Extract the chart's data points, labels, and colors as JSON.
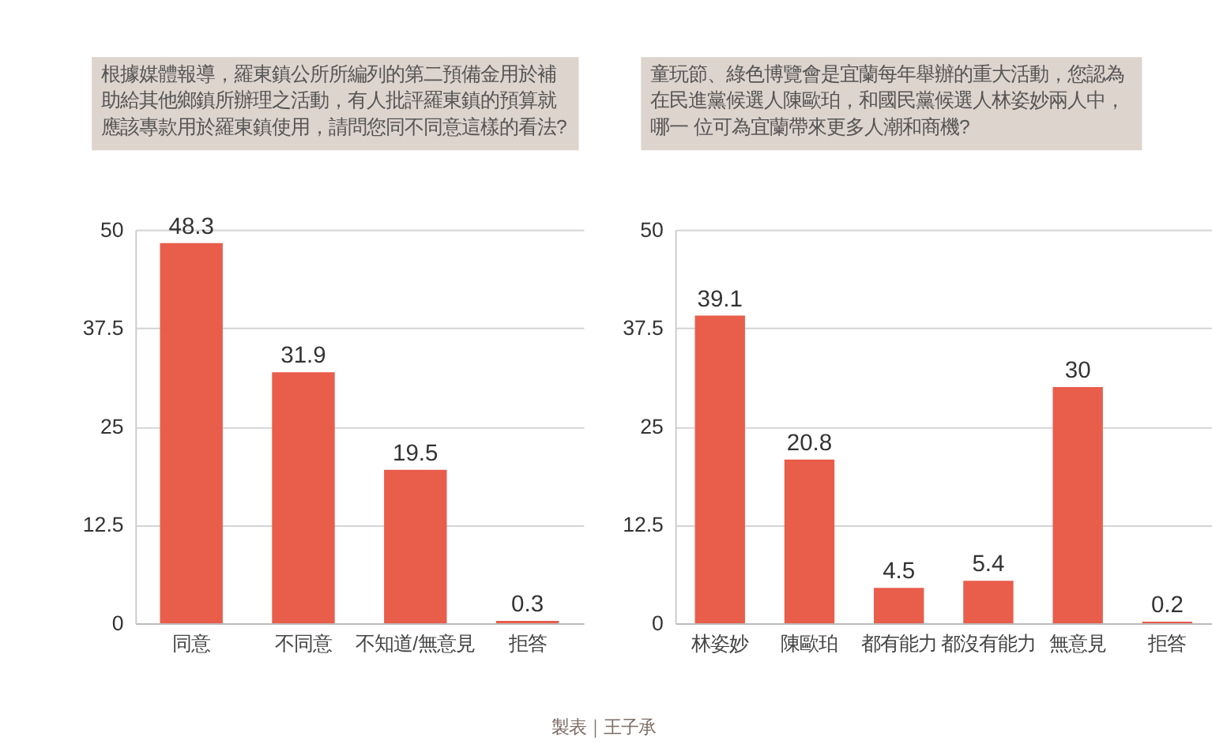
{
  "chart_data": [
    {
      "type": "bar",
      "title": "根據媒體報導，羅東鎮公所所編列的第二預備金用於補助給其他鄉鎮所辦理之活動，有人批評羅東鎮的預算就應該專款用於羅東鎮使用，請問您同不同意這樣的看法?",
      "categories": [
        "同意",
        "不同意",
        "不知道/無意見",
        "拒答"
      ],
      "values": [
        48.3,
        31.9,
        19.5,
        0.3
      ],
      "color": "#e95d4b",
      "ylim": [
        0,
        50
      ],
      "yticks": [
        0,
        12.5,
        25,
        37.5,
        50
      ],
      "grid": "y",
      "data_labels": true
    },
    {
      "type": "bar",
      "title": "童玩節、綠色博覽會是宜蘭每年舉辦的重大活動，您認為在民進黨候選人陳歐珀，和國民黨候選人林姿妙兩人中，哪一 位可為宜蘭帶來更多人潮和商機?",
      "categories": [
        "林姿妙",
        "陳歐珀",
        "都有能力",
        "都沒有能力",
        "無意見",
        "拒答"
      ],
      "values": [
        39.1,
        20.8,
        4.5,
        5.4,
        30,
        0.2
      ],
      "color": "#e95d4b",
      "ylim": [
        0,
        50
      ],
      "yticks": [
        0,
        12.5,
        25,
        37.5,
        50
      ],
      "grid": "y",
      "data_labels": true,
      "annotations": [
        "製表｜王子承"
      ]
    }
  ]
}
